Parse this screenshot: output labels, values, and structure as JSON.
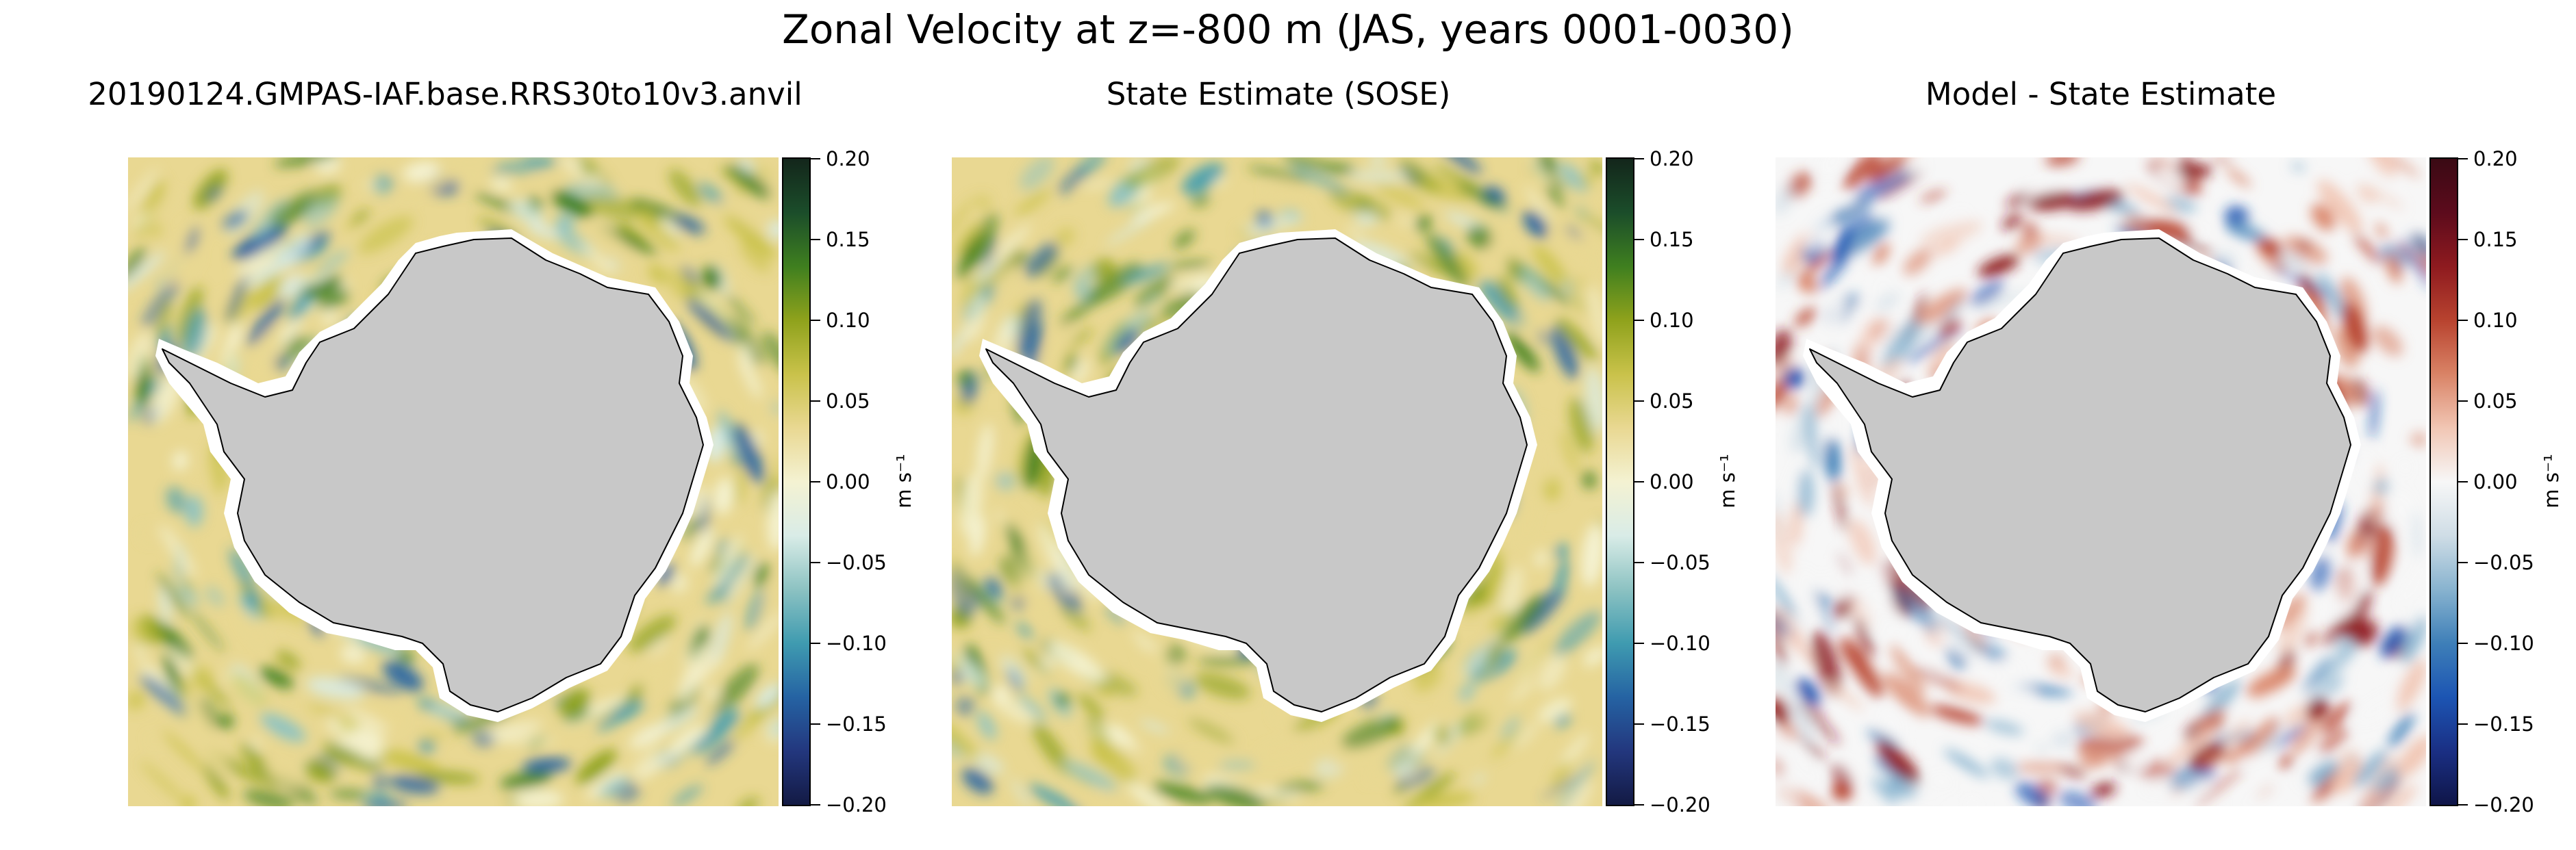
{
  "figure": {
    "title": "Zonal Velocity at z=-800 m (JAS, years 0001-0030)"
  },
  "panels": [
    {
      "title": "20190124.GMPAS-IAF.base.RRS30to10v3.anvil",
      "colormap": "green-yellow-blue",
      "colormap_stops": [
        "#f4f2d2",
        "#e9d892",
        "#c9c24a",
        "#8fa21c",
        "#3f7f1f",
        "#1b4d2a",
        "#13261b"
      ],
      "colormap_neg_stops": [
        "#f4f2d2",
        "#d9ece7",
        "#8cc2c2",
        "#3f9bb0",
        "#2563a3",
        "#23377e",
        "#131a44"
      ],
      "colorbar_ticks": [
        "0.20",
        "0.15",
        "0.10",
        "0.05",
        "0.00",
        "−0.05",
        "−0.10",
        "−0.15",
        "−0.20"
      ],
      "colorbar_label": "m s⁻¹"
    },
    {
      "title": "State Estimate (SOSE)",
      "colormap": "green-yellow-blue",
      "colormap_stops": [
        "#f4f2d2",
        "#e9d892",
        "#c9c24a",
        "#8fa21c",
        "#3f7f1f",
        "#1b4d2a",
        "#13261b"
      ],
      "colormap_neg_stops": [
        "#f4f2d2",
        "#d9ece7",
        "#8cc2c2",
        "#3f9bb0",
        "#2563a3",
        "#23377e",
        "#131a44"
      ],
      "colorbar_ticks": [
        "0.20",
        "0.15",
        "0.10",
        "0.05",
        "0.00",
        "−0.05",
        "−0.10",
        "−0.15",
        "−0.20"
      ],
      "colorbar_label": "m s⁻¹"
    },
    {
      "title": "Model - State Estimate",
      "colormap": "red-white-blue",
      "colormap_stops": [
        "#f7f7f7",
        "#f1c6b4",
        "#d98366",
        "#b8432f",
        "#8e1a1f",
        "#5c0b1c",
        "#3a0a14"
      ],
      "colormap_neg_stops": [
        "#f7f7f7",
        "#cfdde6",
        "#88b3cf",
        "#3e7fb8",
        "#1c55b3",
        "#1a2f84",
        "#0f1548"
      ],
      "colorbar_ticks": [
        "0.20",
        "0.15",
        "0.10",
        "0.05",
        "0.00",
        "−0.05",
        "−0.10",
        "−0.15",
        "−0.20"
      ],
      "colorbar_label": "m s⁻¹"
    }
  ],
  "colors": {
    "land": "#c8c8c8",
    "ice_shelf": "#ffffff",
    "coastline": "#000000"
  }
}
